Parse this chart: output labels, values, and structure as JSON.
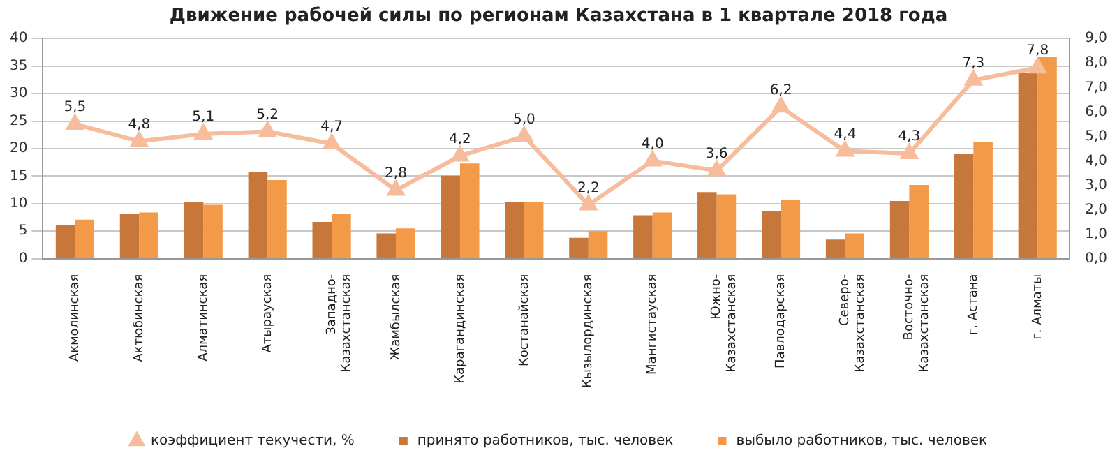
{
  "chart_data": {
    "type": "bar",
    "title": "Движение рабочей силы по регионам Казахстана в 1 квартале 2018 года",
    "categories": [
      "Акмолинская",
      "Актюбинская",
      "Алматинская",
      "Атырауская",
      "Западно-Казахстанская",
      "Жамбылская",
      "Карагандинская",
      "Костанайская",
      "Кызылординская",
      "Мангистауская",
      "Южно-Казахстанская",
      "Павлодарская",
      "Северо-Казахстанская",
      "Восточно-Казахстанская",
      "г. Астана",
      "г. Алматы"
    ],
    "series": [
      {
        "name": "принято работников, тыс. человек",
        "color": "#c8773a",
        "values": [
          6.1,
          8.2,
          10.3,
          15.7,
          6.7,
          4.6,
          15.1,
          10.3,
          3.8,
          7.9,
          12.1,
          8.7,
          3.5,
          10.5,
          19.1,
          33.8
        ]
      },
      {
        "name": "выбыло работников, тыс. человек",
        "color": "#f39a48",
        "values": [
          7.1,
          8.4,
          9.8,
          14.3,
          8.2,
          5.5,
          17.3,
          10.3,
          5.0,
          8.4,
          11.7,
          10.7,
          4.6,
          13.4,
          21.2,
          36.7
        ]
      },
      {
        "name": "коэффициент текучести, %",
        "type": "line",
        "axis": "y2",
        "color": "#f7bc9c",
        "marker": "triangle",
        "values": [
          5.5,
          4.8,
          5.1,
          5.2,
          4.7,
          2.8,
          4.2,
          5.0,
          2.2,
          4.0,
          3.6,
          6.2,
          4.4,
          4.3,
          7.3,
          7.8
        ],
        "value_labels": [
          "5,5",
          "4,8",
          "5,1",
          "5,2",
          "4,7",
          "2,8",
          "4,2",
          "5,0",
          "2,2",
          "4,0",
          "3,6",
          "6,2",
          "4,4",
          "4,3",
          "7,3",
          "7,8"
        ]
      }
    ],
    "ylim": [
      0,
      40
    ],
    "yticks": [
      0,
      5,
      10,
      15,
      20,
      25,
      30,
      35,
      40
    ],
    "y2lim": [
      0,
      9
    ],
    "y2ticks": [
      {
        "value": 0,
        "label": "0,0"
      },
      {
        "value": 1,
        "label": "1,0"
      },
      {
        "value": 2,
        "label": "2,0"
      },
      {
        "value": 3,
        "label": "3,0"
      },
      {
        "value": 4,
        "label": "4,0"
      },
      {
        "value": 5,
        "label": "5,0"
      },
      {
        "value": 6,
        "label": "6,0"
      },
      {
        "value": 7,
        "label": "7,0"
      },
      {
        "value": 8,
        "label": "8,0"
      },
      {
        "value": 9,
        "label": "9,0"
      }
    ],
    "grid": "y",
    "legend": "bottom"
  }
}
